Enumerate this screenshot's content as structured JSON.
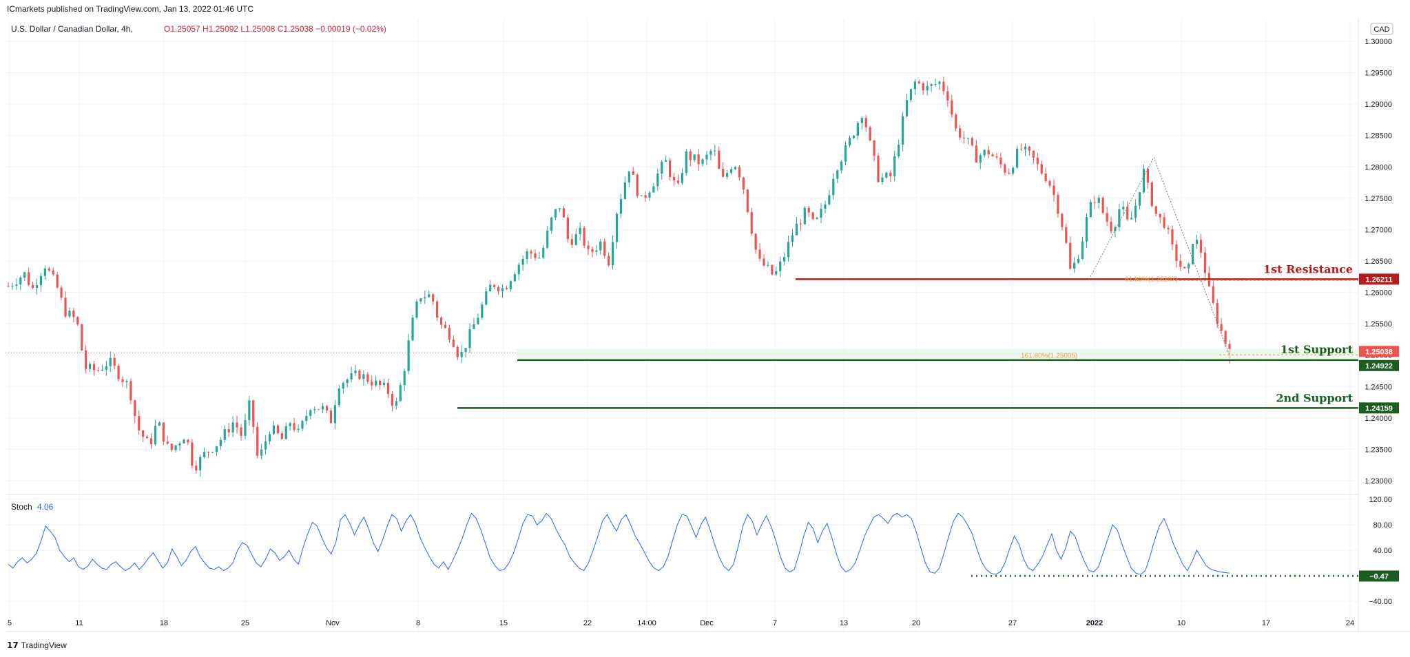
{
  "header": {
    "publisher": "ICmarkets published on TradingView.com, Jan 13, 2022 01:46 UTC",
    "symbol": "U.S. Dollar / Canadian Dollar, 4h,",
    "ohlc": "O1.25057  H1.25092  L1.25008  C1.25038  −0.00019 (−0.02%)",
    "currency": "CAD"
  },
  "footer": {
    "logo_text": "TradingView"
  },
  "colors": {
    "up": "#26a69a",
    "down": "#ef5350",
    "resistance": "#b71c1c",
    "support": "#1b5e20",
    "stoch": "#2962ff",
    "fib": "#e8a33c"
  },
  "chart_data": [
    {
      "type": "candlestick",
      "title": "U.S. Dollar / Canadian Dollar, 4h",
      "x_ticks": [
        "5",
        "11",
        "18",
        "25",
        "Nov",
        "8",
        "15",
        "22",
        "14:00",
        "Dec",
        "7",
        "13",
        "20",
        "27",
        "2022",
        "10",
        "17",
        "24"
      ],
      "y_ticks": [
        "1.30000",
        "1.29500",
        "1.29000",
        "1.28500",
        "1.28000",
        "1.27500",
        "1.27000",
        "1.26500",
        "1.26000",
        "1.25500",
        "1.25000",
        "1.24500",
        "1.24000",
        "1.23500",
        "1.23000"
      ],
      "ylim": [
        1.2275,
        1.3035
      ],
      "price_path": [
        {
          "x": 0.0,
          "y": 1.261
        },
        {
          "x": 2.0,
          "y": 1.263
        },
        {
          "x": 3.0,
          "y": 1.2605
        },
        {
          "x": 4.5,
          "y": 1.2645
        },
        {
          "x": 6.0,
          "y": 1.261
        },
        {
          "x": 7.0,
          "y": 1.257
        },
        {
          "x": 8.5,
          "y": 1.2555
        },
        {
          "x": 9.5,
          "y": 1.248
        },
        {
          "x": 11.0,
          "y": 1.2475
        },
        {
          "x": 12.5,
          "y": 1.249
        },
        {
          "x": 14.0,
          "y": 1.2465
        },
        {
          "x": 15.0,
          "y": 1.245
        },
        {
          "x": 16.0,
          "y": 1.2385
        },
        {
          "x": 17.5,
          "y": 1.2355
        },
        {
          "x": 18.5,
          "y": 1.2395
        },
        {
          "x": 20.0,
          "y": 1.2345
        },
        {
          "x": 22.0,
          "y": 1.2375
        },
        {
          "x": 23.0,
          "y": 1.232
        },
        {
          "x": 24.5,
          "y": 1.2345
        },
        {
          "x": 26.0,
          "y": 1.236
        },
        {
          "x": 28.0,
          "y": 1.2395
        },
        {
          "x": 29.0,
          "y": 1.237
        },
        {
          "x": 30.0,
          "y": 1.2425
        },
        {
          "x": 31.0,
          "y": 1.233
        },
        {
          "x": 32.5,
          "y": 1.2385
        },
        {
          "x": 34.0,
          "y": 1.2365
        },
        {
          "x": 35.0,
          "y": 1.2395
        },
        {
          "x": 36.0,
          "y": 1.2375
        },
        {
          "x": 37.5,
          "y": 1.242
        },
        {
          "x": 39.0,
          "y": 1.2415
        },
        {
          "x": 40.0,
          "y": 1.2395
        },
        {
          "x": 41.0,
          "y": 1.2455
        },
        {
          "x": 43.5,
          "y": 1.247
        },
        {
          "x": 45.5,
          "y": 1.2455
        },
        {
          "x": 47.0,
          "y": 1.2445
        },
        {
          "x": 48.0,
          "y": 1.2415
        },
        {
          "x": 49.0,
          "y": 1.247
        },
        {
          "x": 50.0,
          "y": 1.2545
        },
        {
          "x": 51.0,
          "y": 1.2595
        },
        {
          "x": 52.5,
          "y": 1.2595
        },
        {
          "x": 53.5,
          "y": 1.255
        },
        {
          "x": 55.0,
          "y": 1.253
        },
        {
          "x": 56.0,
          "y": 1.2495
        },
        {
          "x": 57.0,
          "y": 1.2525
        },
        {
          "x": 58.5,
          "y": 1.257
        },
        {
          "x": 60.0,
          "y": 1.2615
        },
        {
          "x": 61.5,
          "y": 1.2605
        },
        {
          "x": 63.0,
          "y": 1.264
        },
        {
          "x": 64.5,
          "y": 1.2665
        },
        {
          "x": 66.0,
          "y": 1.2655
        },
        {
          "x": 67.5,
          "y": 1.272
        },
        {
          "x": 68.5,
          "y": 1.274
        },
        {
          "x": 69.5,
          "y": 1.268
        },
        {
          "x": 71.0,
          "y": 1.2695
        },
        {
          "x": 72.0,
          "y": 1.266
        },
        {
          "x": 73.5,
          "y": 1.268
        },
        {
          "x": 74.5,
          "y": 1.265
        },
        {
          "x": 75.5,
          "y": 1.273
        },
        {
          "x": 77.0,
          "y": 1.28
        },
        {
          "x": 78.5,
          "y": 1.2745
        },
        {
          "x": 80.0,
          "y": 1.2775
        },
        {
          "x": 81.5,
          "y": 1.281
        },
        {
          "x": 83.0,
          "y": 1.276
        },
        {
          "x": 84.0,
          "y": 1.282
        },
        {
          "x": 86.0,
          "y": 1.2805
        },
        {
          "x": 87.5,
          "y": 1.283
        },
        {
          "x": 88.5,
          "y": 1.2775
        },
        {
          "x": 90.0,
          "y": 1.281
        },
        {
          "x": 91.0,
          "y": 1.278
        },
        {
          "x": 92.0,
          "y": 1.2715
        },
        {
          "x": 93.0,
          "y": 1.265
        },
        {
          "x": 94.0,
          "y": 1.264
        },
        {
          "x": 95.0,
          "y": 1.2625
        },
        {
          "x": 96.0,
          "y": 1.265
        },
        {
          "x": 97.5,
          "y": 1.27
        },
        {
          "x": 99.0,
          "y": 1.273
        },
        {
          "x": 100.0,
          "y": 1.2705
        },
        {
          "x": 101.5,
          "y": 1.2745
        },
        {
          "x": 102.5,
          "y": 1.2795
        },
        {
          "x": 104.0,
          "y": 1.283
        },
        {
          "x": 105.0,
          "y": 1.286
        },
        {
          "x": 106.0,
          "y": 1.289
        },
        {
          "x": 107.0,
          "y": 1.283
        },
        {
          "x": 108.0,
          "y": 1.278
        },
        {
          "x": 109.5,
          "y": 1.2785
        },
        {
          "x": 110.5,
          "y": 1.2845
        },
        {
          "x": 111.5,
          "y": 1.2905
        },
        {
          "x": 112.5,
          "y": 1.2935
        },
        {
          "x": 114.0,
          "y": 1.2925
        },
        {
          "x": 115.5,
          "y": 1.2935
        },
        {
          "x": 116.5,
          "y": 1.2915
        },
        {
          "x": 117.5,
          "y": 1.286
        },
        {
          "x": 119.0,
          "y": 1.284
        },
        {
          "x": 120.0,
          "y": 1.2815
        },
        {
          "x": 121.5,
          "y": 1.2825
        },
        {
          "x": 123.0,
          "y": 1.2805
        },
        {
          "x": 124.0,
          "y": 1.279
        },
        {
          "x": 125.5,
          "y": 1.283
        },
        {
          "x": 127.0,
          "y": 1.2815
        },
        {
          "x": 128.0,
          "y": 1.2795
        },
        {
          "x": 129.0,
          "y": 1.278
        },
        {
          "x": 130.0,
          "y": 1.2745
        },
        {
          "x": 131.0,
          "y": 1.2695
        },
        {
          "x": 131.8,
          "y": 1.263
        },
        {
          "x": 133.0,
          "y": 1.267
        },
        {
          "x": 134.0,
          "y": 1.273
        },
        {
          "x": 135.0,
          "y": 1.2755
        },
        {
          "x": 136.0,
          "y": 1.272
        },
        {
          "x": 137.0,
          "y": 1.27
        },
        {
          "x": 138.0,
          "y": 1.274
        },
        {
          "x": 139.0,
          "y": 1.2705
        },
        {
          "x": 140.0,
          "y": 1.2745
        },
        {
          "x": 140.8,
          "y": 1.2795
        },
        {
          "x": 141.5,
          "y": 1.276
        },
        {
          "x": 142.5,
          "y": 1.272
        },
        {
          "x": 143.5,
          "y": 1.271
        },
        {
          "x": 144.5,
          "y": 1.2665
        },
        {
          "x": 145.5,
          "y": 1.264
        },
        {
          "x": 146.3,
          "y": 1.2625
        },
        {
          "x": 147.0,
          "y": 1.269
        },
        {
          "x": 148.0,
          "y": 1.2665
        },
        {
          "x": 149.0,
          "y": 1.26
        },
        {
          "x": 150.0,
          "y": 1.2555
        },
        {
          "x": 151.0,
          "y": 1.252
        },
        {
          "x": 151.5,
          "y": 1.2504
        }
      ],
      "levels": [
        {
          "name": "1st Resistance",
          "value": 1.26211,
          "tag": "1.26211"
        },
        {
          "name": "1st Support",
          "value": 1.24922,
          "tag": "1.24922"
        },
        {
          "name": "2nd Support",
          "value": 1.24159,
          "tag": "1.24159"
        }
      ],
      "last_price": {
        "value": 1.25038,
        "tag": "1.25038"
      },
      "fib_labels": [
        {
          "text": "61.80%(1.26207)",
          "value": 1.26207
        },
        {
          "text": "161.80%(1.25005)",
          "value": 1.25005
        }
      ]
    },
    {
      "type": "line",
      "title": "Stoch",
      "current": "4.06",
      "y_ticks": [
        "120.00",
        "80.00",
        "40.00",
        "−40.00"
      ],
      "ylim": [
        -50,
        120
      ],
      "level_tag": "−0.47",
      "values": [
        18,
        12,
        22,
        28,
        20,
        26,
        35,
        55,
        78,
        70,
        60,
        40,
        30,
        22,
        28,
        14,
        10,
        15,
        26,
        18,
        12,
        10,
        18,
        22,
        14,
        8,
        12,
        20,
        10,
        18,
        28,
        36,
        24,
        12,
        20,
        42,
        30,
        16,
        24,
        38,
        46,
        30,
        20,
        12,
        10,
        14,
        8,
        12,
        20,
        40,
        52,
        48,
        34,
        20,
        14,
        26,
        42,
        36,
        24,
        30,
        40,
        26,
        18,
        44,
        66,
        84,
        78,
        60,
        44,
        34,
        52,
        88,
        96,
        82,
        64,
        80,
        92,
        74,
        52,
        38,
        56,
        78,
        96,
        90,
        70,
        86,
        96,
        82,
        60,
        44,
        30,
        18,
        12,
        22,
        10,
        24,
        40,
        58,
        80,
        98,
        90,
        72,
        50,
        28,
        16,
        8,
        10,
        20,
        36,
        58,
        82,
        96,
        94,
        80,
        86,
        98,
        90,
        74,
        60,
        48,
        30,
        20,
        12,
        8,
        20,
        40,
        62,
        86,
        96,
        82,
        70,
        88,
        96,
        80,
        62,
        50,
        36,
        22,
        12,
        8,
        14,
        30,
        56,
        80,
        96,
        94,
        78,
        60,
        80,
        92,
        72,
        48,
        28,
        14,
        8,
        18,
        46,
        78,
        96,
        86,
        64,
        80,
        94,
        78,
        56,
        30,
        12,
        6,
        10,
        34,
        62,
        84,
        74,
        52,
        70,
        82,
        60,
        34,
        14,
        6,
        10,
        20,
        40,
        62,
        78,
        92,
        96,
        90,
        82,
        94,
        98,
        92,
        96,
        90,
        70,
        44,
        20,
        6,
        4,
        12,
        36,
        62,
        86,
        98,
        92,
        80,
        66,
        42,
        22,
        10,
        4,
        2,
        6,
        20,
        42,
        62,
        50,
        26,
        12,
        8,
        18,
        30,
        48,
        66,
        40,
        26,
        44,
        70,
        62,
        40,
        22,
        8,
        6,
        14,
        36,
        58,
        80,
        72,
        50,
        30,
        12,
        4,
        2,
        8,
        30,
        56,
        78,
        90,
        72,
        50,
        34,
        18,
        8,
        22,
        40,
        28,
        16,
        10,
        8,
        6,
        5,
        4
      ]
    }
  ]
}
